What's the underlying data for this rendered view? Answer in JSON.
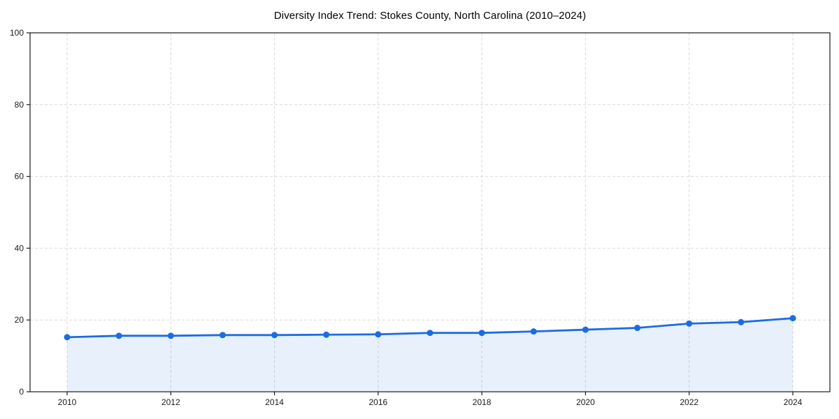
{
  "chart_data": {
    "type": "area",
    "title": "Diversity Index Trend: Stokes County, North Carolina (2010–2024)",
    "xlabel": "",
    "ylabel": "",
    "x": [
      2010,
      2011,
      2012,
      2013,
      2014,
      2015,
      2016,
      2017,
      2018,
      2019,
      2020,
      2021,
      2022,
      2023,
      2024
    ],
    "series": [
      {
        "name": "Diversity Index",
        "values": [
          15.2,
          15.6,
          15.6,
          15.8,
          15.8,
          15.9,
          16.0,
          16.4,
          16.4,
          16.8,
          17.3,
          17.8,
          19.0,
          19.4,
          20.5
        ]
      }
    ],
    "ylim": [
      0,
      100
    ],
    "yticks": [
      0,
      20,
      40,
      60,
      80,
      100
    ],
    "xticks": [
      2010,
      2012,
      2014,
      2016,
      2018,
      2020,
      2022,
      2024
    ],
    "grid": "dashed",
    "legend": "none",
    "colors": {
      "line": "#1b6ce4",
      "marker": "#1b6ce4",
      "fill": "#1b6ce4",
      "fill_opacity": 0.1,
      "gridline": "#d9d9d9",
      "frame": "#1a1a1a",
      "tick_text": "#1a1a1a",
      "background": "#ffffff"
    }
  }
}
